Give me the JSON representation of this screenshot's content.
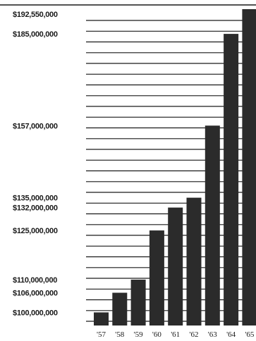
{
  "chart_data": {
    "type": "bar",
    "categories": [
      "'57",
      "'58",
      "'59",
      "'60",
      "'61",
      "'62",
      "'63",
      "'64",
      "'65"
    ],
    "values": [
      100000000,
      106000000,
      110000000,
      125000000,
      132000000,
      135000000,
      157000000,
      185000000,
      192550000
    ],
    "value_labels": [
      "$192,550,000",
      "$185,000,000",
      "$157,000,000",
      "$135,000,000",
      "$132,000,000",
      "$125,000,000",
      "$110,000,000",
      "$106,000,000",
      "$100,000,000"
    ],
    "grid": true,
    "colors": {
      "bar": "#2b2b2b",
      "grid": "#1a1a1a",
      "text": "#1a1a1a"
    }
  }
}
